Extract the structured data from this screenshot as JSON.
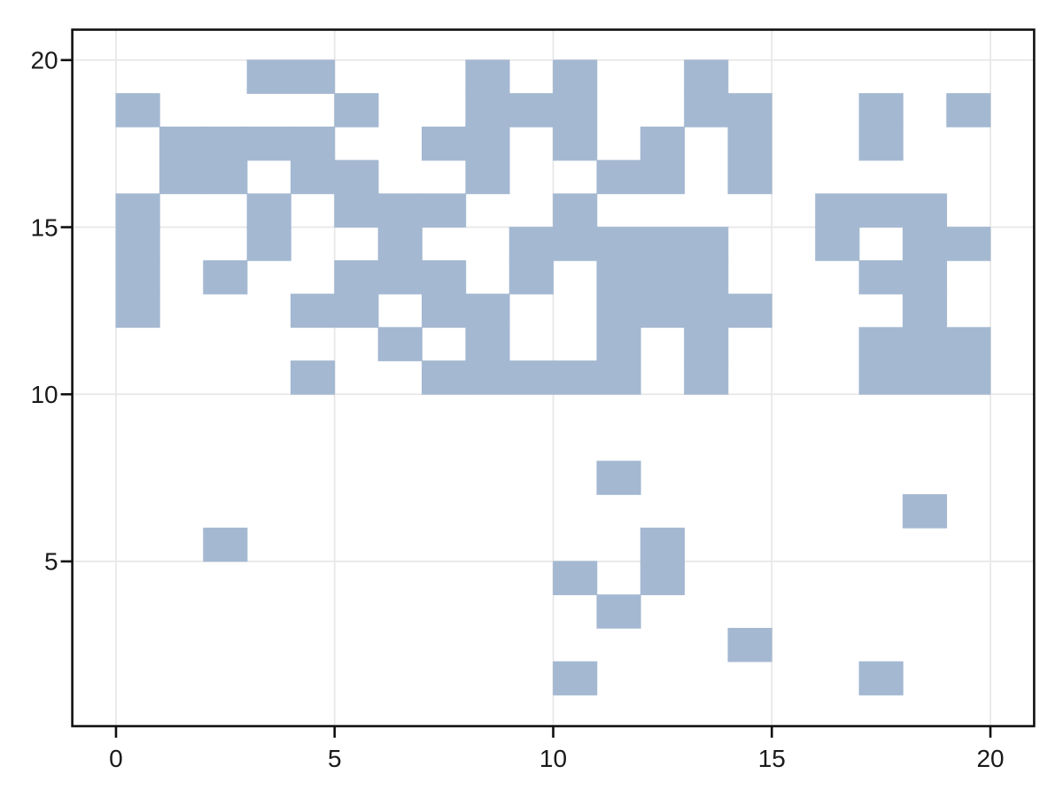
{
  "figure": {
    "background": "#ffffff"
  },
  "chart_data": {
    "type": "heatmap",
    "title": "",
    "xlabel": "",
    "ylabel": "",
    "grid": true,
    "legend": false,
    "x_ticks": [
      0,
      5,
      10,
      15,
      20
    ],
    "y_ticks": [
      5,
      10,
      15,
      20
    ],
    "xlim": [
      -1,
      21
    ],
    "ylim": [
      0.07,
      20.91
    ],
    "cell_size": 1,
    "cell_color": "#a4b8d1",
    "grid_color": "#e8e8e8",
    "axis_color": "#101010",
    "tick_label_color": "#1a1a1a",
    "tick_label_size": 28,
    "cells": [
      [
        3,
        19
      ],
      [
        4,
        19
      ],
      [
        8,
        19
      ],
      [
        10,
        19
      ],
      [
        13,
        19
      ],
      [
        0,
        18
      ],
      [
        5,
        18
      ],
      [
        8,
        18
      ],
      [
        9,
        18
      ],
      [
        10,
        18
      ],
      [
        13,
        18
      ],
      [
        14,
        18
      ],
      [
        17,
        18
      ],
      [
        19,
        18
      ],
      [
        1,
        17
      ],
      [
        2,
        17
      ],
      [
        3,
        17
      ],
      [
        4,
        17
      ],
      [
        7,
        17
      ],
      [
        8,
        17
      ],
      [
        10,
        17
      ],
      [
        12,
        17
      ],
      [
        14,
        17
      ],
      [
        17,
        17
      ],
      [
        1,
        16
      ],
      [
        2,
        16
      ],
      [
        4,
        16
      ],
      [
        5,
        16
      ],
      [
        8,
        16
      ],
      [
        11,
        16
      ],
      [
        12,
        16
      ],
      [
        14,
        16
      ],
      [
        0,
        15
      ],
      [
        3,
        15
      ],
      [
        5,
        15
      ],
      [
        6,
        15
      ],
      [
        7,
        15
      ],
      [
        10,
        15
      ],
      [
        16,
        15
      ],
      [
        17,
        15
      ],
      [
        18,
        15
      ],
      [
        0,
        14
      ],
      [
        3,
        14
      ],
      [
        6,
        14
      ],
      [
        9,
        14
      ],
      [
        10,
        14
      ],
      [
        11,
        14
      ],
      [
        12,
        14
      ],
      [
        13,
        14
      ],
      [
        16,
        14
      ],
      [
        18,
        14
      ],
      [
        19,
        14
      ],
      [
        0,
        13
      ],
      [
        2,
        13
      ],
      [
        5,
        13
      ],
      [
        6,
        13
      ],
      [
        7,
        13
      ],
      [
        9,
        13
      ],
      [
        11,
        13
      ],
      [
        12,
        13
      ],
      [
        13,
        13
      ],
      [
        17,
        13
      ],
      [
        18,
        13
      ],
      [
        0,
        12
      ],
      [
        4,
        12
      ],
      [
        5,
        12
      ],
      [
        7,
        12
      ],
      [
        8,
        12
      ],
      [
        11,
        12
      ],
      [
        12,
        12
      ],
      [
        13,
        12
      ],
      [
        14,
        12
      ],
      [
        18,
        12
      ],
      [
        6,
        11
      ],
      [
        8,
        11
      ],
      [
        11,
        11
      ],
      [
        13,
        11
      ],
      [
        17,
        11
      ],
      [
        18,
        11
      ],
      [
        19,
        11
      ],
      [
        4,
        10
      ],
      [
        7,
        10
      ],
      [
        8,
        10
      ],
      [
        9,
        10
      ],
      [
        10,
        10
      ],
      [
        11,
        10
      ],
      [
        13,
        10
      ],
      [
        17,
        10
      ],
      [
        18,
        10
      ],
      [
        19,
        10
      ],
      [
        11,
        7
      ],
      [
        18,
        6
      ],
      [
        2,
        5
      ],
      [
        12,
        5
      ],
      [
        10,
        4
      ],
      [
        12,
        4
      ],
      [
        11,
        3
      ],
      [
        14,
        2
      ],
      [
        10,
        1
      ],
      [
        17,
        1
      ]
    ]
  }
}
